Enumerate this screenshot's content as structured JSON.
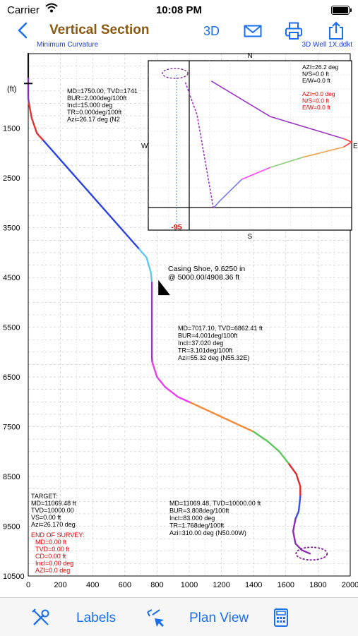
{
  "status": {
    "carrier": "Carrier",
    "time": "10:08 PM"
  },
  "nav": {
    "title": "Vertical Section",
    "three_d": "3D"
  },
  "subheader": {
    "method": "Minimum Curvature",
    "file": "3D Well 1X.ddkt"
  },
  "chart_data": {
    "type": "line",
    "x_axis": {
      "range": [
        0,
        2000
      ],
      "ticks": [
        0,
        200,
        400,
        600,
        800,
        1000,
        1200,
        1400,
        1600,
        1800,
        2000
      ]
    },
    "y_axis": {
      "unit": "(ft)",
      "range": [
        0,
        10500
      ],
      "inverted": true,
      "ticks": [
        1500,
        2500,
        3500,
        4500,
        5500,
        6500,
        7500,
        8500,
        9500,
        10500
      ]
    },
    "grid": true,
    "series": [
      {
        "color": "#111111",
        "x": [
          0,
          0
        ],
        "y": [
          0,
          500
        ]
      },
      {
        "color": "#7a35b8",
        "x": [
          0,
          0,
          4
        ],
        "y": [
          500,
          900,
          1000
        ]
      },
      {
        "color": "#e53030",
        "x": [
          4,
          22,
          54,
          95
        ],
        "y": [
          1000,
          1300,
          1600,
          1750
        ]
      },
      {
        "color": "#2a40e8",
        "x": [
          95,
          690
        ],
        "y": [
          1750,
          3930
        ]
      },
      {
        "color": "#5ec7ee",
        "x": [
          690,
          735,
          762,
          768
        ],
        "y": [
          3930,
          4100,
          4400,
          4600
        ]
      },
      {
        "color": "#9c36c4",
        "x": [
          768,
          768,
          770
        ],
        "y": [
          4600,
          6100,
          6200
        ]
      },
      {
        "color": "#e83ef0",
        "x": [
          770,
          800,
          850,
          930,
          1010
        ],
        "y": [
          6200,
          6500,
          6700,
          6900,
          7017
        ]
      },
      {
        "color": "#f28c3a",
        "x": [
          1010,
          1400
        ],
        "y": [
          7017,
          7600
        ]
      },
      {
        "color": "#5cc85c",
        "x": [
          1400,
          1490,
          1560,
          1620
        ],
        "y": [
          7600,
          7800,
          8000,
          8250
        ]
      },
      {
        "color": "#e12a2a",
        "x": [
          1620,
          1665,
          1690,
          1690
        ],
        "y": [
          8250,
          8450,
          8700,
          8900
        ]
      },
      {
        "color": "#3a4de8",
        "x": [
          1690,
          1680,
          1660
        ],
        "y": [
          8900,
          9200,
          9350
        ]
      },
      {
        "color": "#8a2fb3",
        "x": [
          1660,
          1645,
          1660,
          1700,
          1750
        ],
        "y": [
          9350,
          9600,
          9850,
          9980,
          10050
        ]
      }
    ],
    "annotations": {
      "kop": [
        "MD=1750.00, TVD=1741",
        "BUR=2.000deg/100ft",
        "Incl=15.000 deg",
        "TR=0.000deg/100ft",
        "Azi=26.17 deg (N2"
      ],
      "casing": [
        "Casing Shoe, 9.6250 in",
        "@ 5000.00/4908.36 ft"
      ],
      "mid": [
        "MD=7017.10, TVD=6862.41 ft",
        "BUR=4.001deg/100ft",
        "Incl=37.020 deg",
        "TR=3.101deg/100ft",
        "Azi=55.32 deg (N55.32E)"
      ],
      "end": [
        "MD=11069.48, TVD=10000.00 ft",
        "BUR=3.808deg/100ft",
        "Incl=83.000 deg",
        "TR=1.768deg/100ft",
        "Azi=310.00 deg (N50.00W)"
      ],
      "target": [
        "TARGET:",
        "MD=11069.48 ft",
        "TVD=10000.00",
        "VS=0.00 ft",
        "Azi=26.170 deg"
      ],
      "survey": [
        "END OF SURVEY:",
        "MD=0.00 ft",
        "TVD=0.00 ft",
        "CD=0.00 ft",
        "Incl=0.00 deg",
        "AZI=0.0 deg"
      ]
    },
    "plan_view": {
      "compass": {
        "n": "N",
        "s": "S",
        "e": "E",
        "w": "W"
      },
      "info_black": [
        "AZI=26.2 deg",
        "N/S=0.0 ft",
        "E/W=0.0 ft"
      ],
      "info_red": [
        "AZI=0.0 deg",
        "N/S=0.0 ft",
        "E/W=0.0  ft"
      ],
      "marker_label": "-95",
      "path": [
        {
          "color": "#9b36c8",
          "pts": [
            [
              0.31,
              0.12
            ],
            [
              0.6,
              0.33
            ],
            [
              0.96,
              0.46
            ]
          ]
        },
        {
          "color": "#ff4040",
          "pts": [
            [
              0.96,
              0.46
            ],
            [
              1.0,
              0.48
            ],
            [
              0.96,
              0.51
            ]
          ]
        },
        {
          "color": "#f0a24a",
          "pts": [
            [
              0.96,
              0.51
            ],
            [
              0.76,
              0.57
            ]
          ]
        },
        {
          "color": "#8fd07a",
          "pts": [
            [
              0.76,
              0.57
            ],
            [
              0.6,
              0.63
            ]
          ]
        },
        {
          "color": "#ff44ff",
          "pts": [
            [
              0.6,
              0.63
            ],
            [
              0.46,
              0.7
            ]
          ]
        },
        {
          "color": "#7a7af0",
          "pts": [
            [
              0.46,
              0.7
            ],
            [
              0.35,
              0.83
            ],
            [
              0.32,
              0.87
            ]
          ]
        },
        {
          "color": "#9b36c8",
          "pts": [
            [
              0.32,
              0.87
            ],
            [
              0.24,
              0.32
            ],
            [
              0.18,
              0.12
            ]
          ]
        }
      ]
    }
  },
  "tabbar": {
    "labels": "Labels",
    "plan_view": "Plan View"
  },
  "icons": {
    "back": "chevron-left-icon",
    "mail": "mail-icon",
    "print": "printer-icon",
    "share": "share-icon",
    "tools": "tools-icon",
    "pointer": "pointer-icon",
    "calculator": "calculator-icon"
  },
  "colors": {
    "accent": "#1a6ef0",
    "title": "#8b5a12",
    "subheader": "#1a3fe0"
  }
}
